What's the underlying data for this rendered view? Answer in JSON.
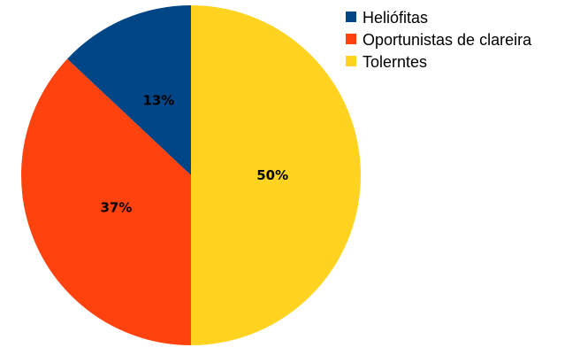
{
  "chart_data": {
    "type": "pie",
    "categories": [
      "Heliófitas",
      "Oportunistas de clareira",
      "Tolerntes"
    ],
    "values": [
      13,
      37,
      50
    ],
    "labels": [
      "13%",
      "37%",
      "50%"
    ],
    "colors": [
      "#004586",
      "#ff420e",
      "#ffd320"
    ],
    "start": "12 o'clock",
    "direction": "counterclockwise",
    "legend_position": "top-right",
    "title": ""
  }
}
